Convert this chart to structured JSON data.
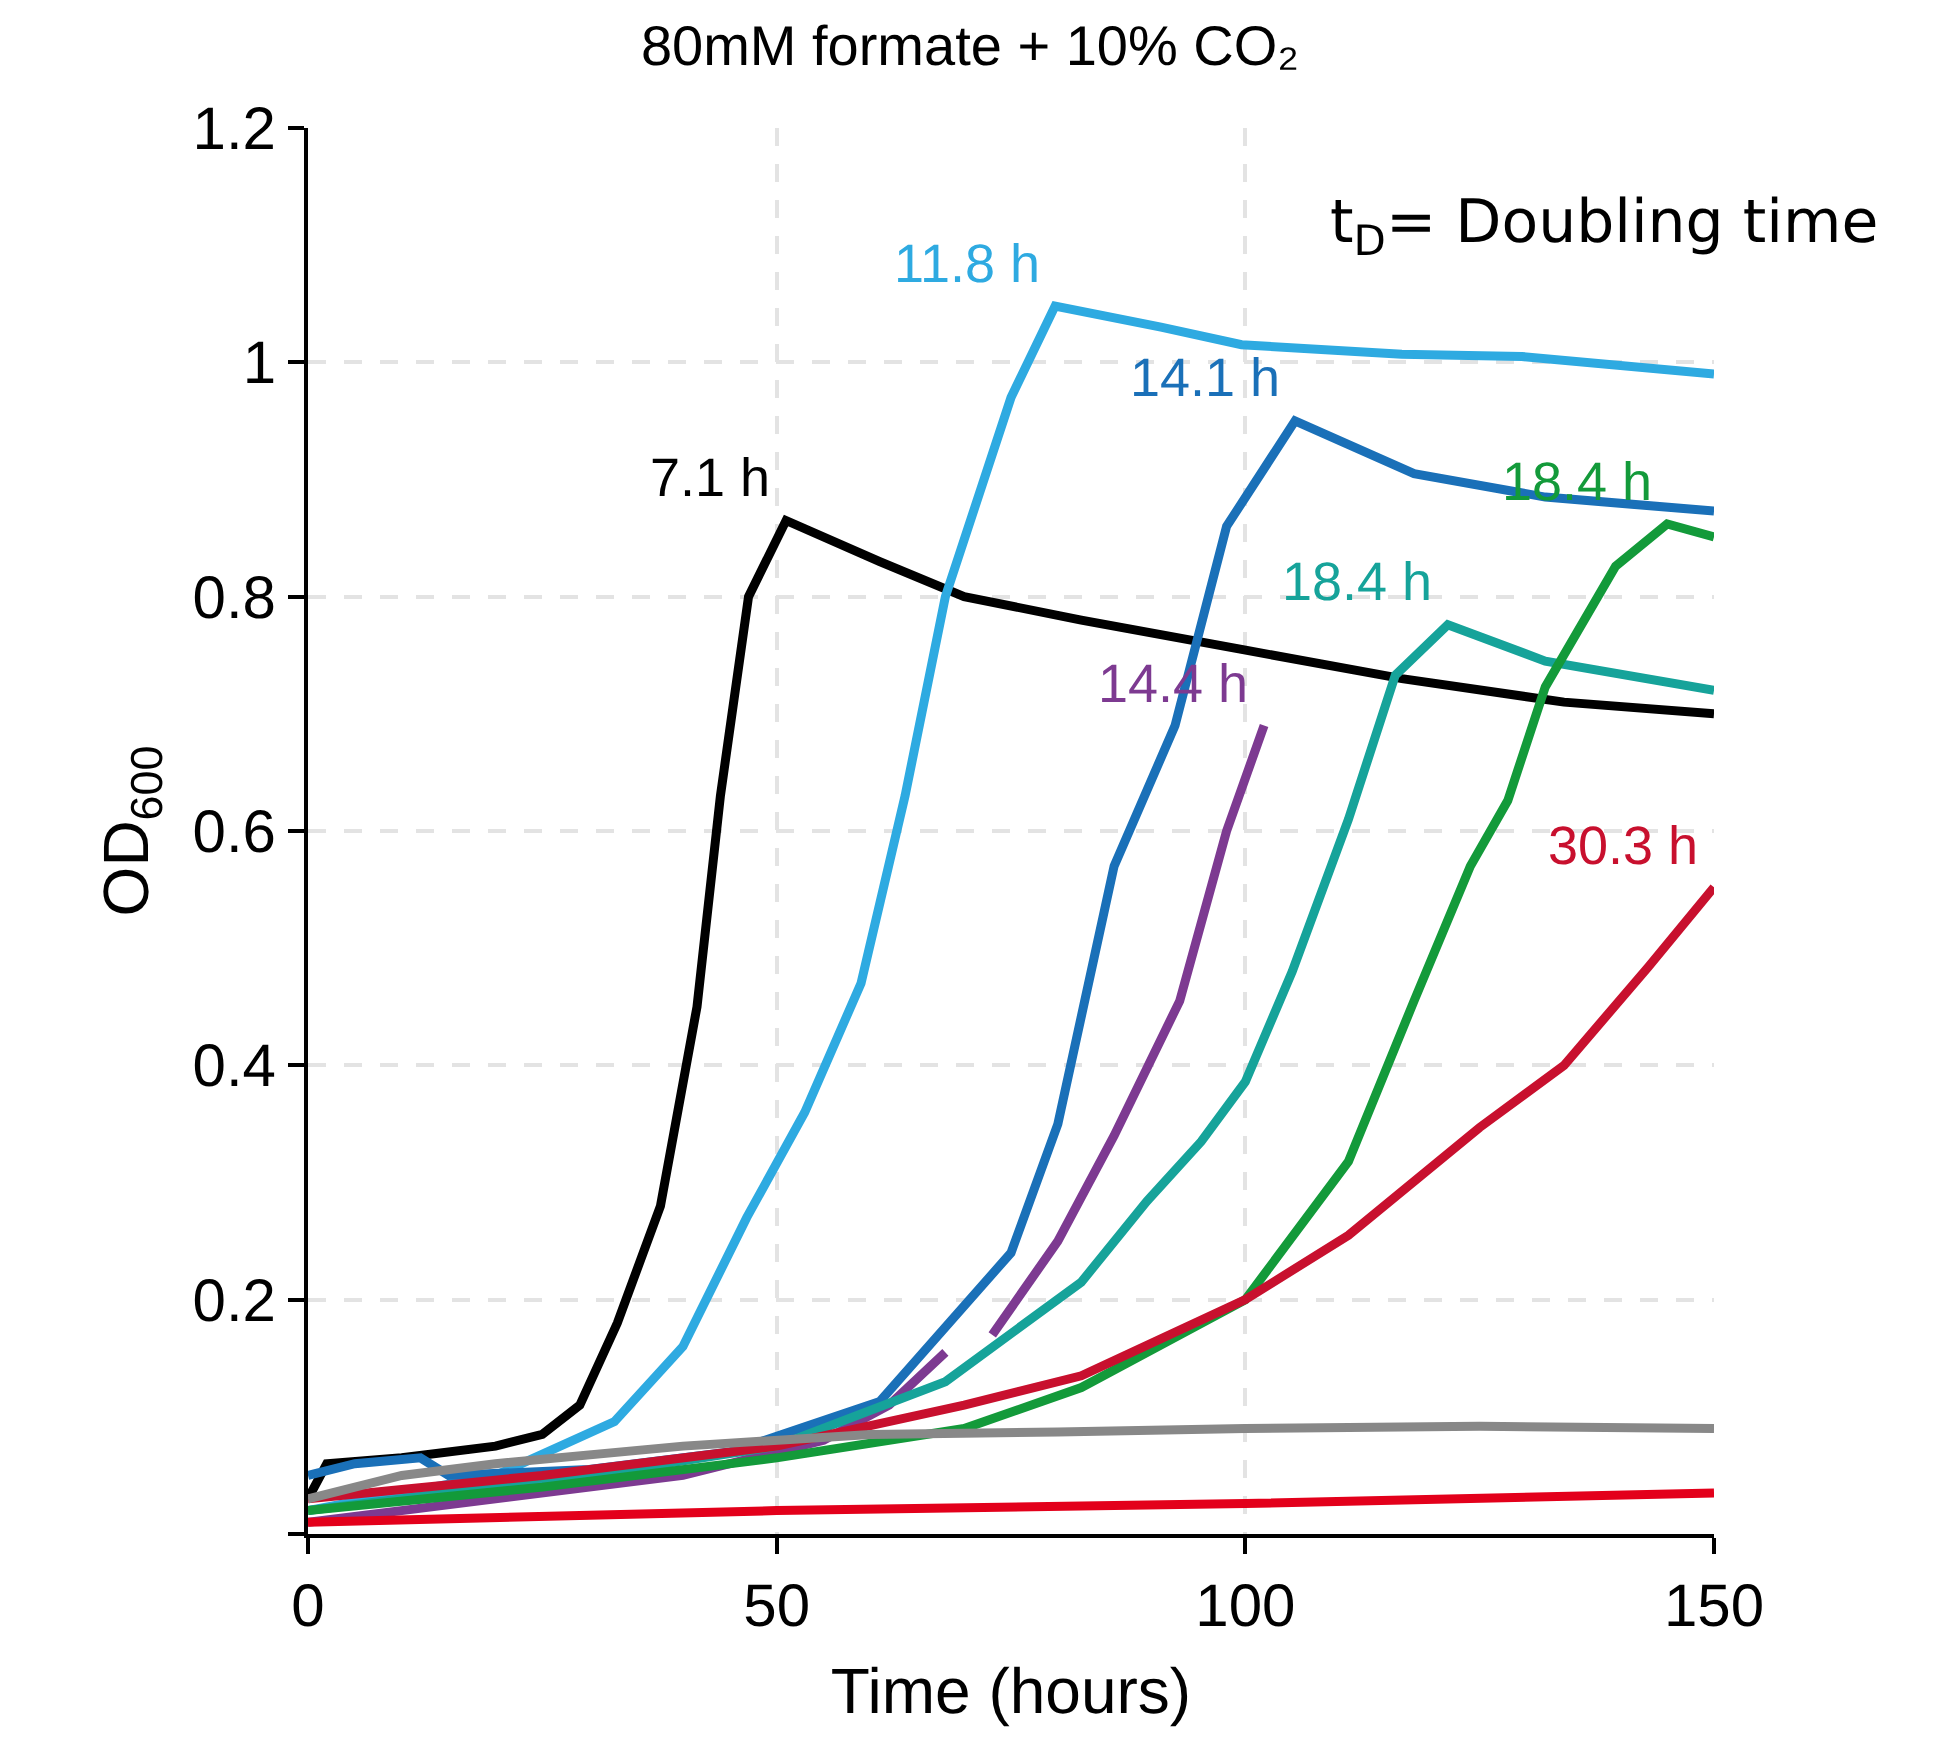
{
  "chart_data": {
    "type": "line",
    "title": "80mM formate + 10% CO₂",
    "xlabel": "Time (hours)",
    "ylabel": "OD$_{600}$",
    "annotations": [
      "t$_{D}$= Doubling time"
    ],
    "xlim": [
      0,
      150
    ],
    "xticks": [
      0,
      50,
      100,
      150
    ],
    "ylim": [
      0,
      1.2
    ],
    "yticks": [
      {
        "value": 0,
        "label": null
      },
      0.2,
      0.4,
      0.6,
      0.8,
      1,
      1.2
    ],
    "grid": true,
    "legend": false,
    "marker": "none",
    "line_style": "solid",
    "series": [
      {
        "name": "7.1 h",
        "color": "#000000",
        "x": [
          0,
          2,
          10,
          20,
          25,
          29,
          33,
          37.6,
          41.5,
          44,
          47,
          51,
          61,
          70,
          82.5,
          99.6,
          116.7,
          134,
          150
        ],
        "values": [
          0.03,
          0.06,
          0.065,
          0.075,
          0.085,
          0.11,
          0.18,
          0.28,
          0.45,
          0.63,
          0.8,
          0.865,
          0.83,
          0.8,
          0.78,
          0.755,
          0.73,
          0.71,
          0.7
        ]
      },
      {
        "name": "11.8 h",
        "color": "#2eaae1",
        "x": [
          0,
          10,
          20,
          32.7,
          40,
          46.8,
          53,
          59,
          63.7,
          68,
          75,
          79.7,
          91,
          99.6,
          116.7,
          129.5,
          150
        ],
        "values": [
          0.02,
          0.035,
          0.05,
          0.096,
          0.16,
          0.27,
          0.36,
          0.47,
          0.63,
          0.8,
          0.97,
          1.048,
          1.03,
          1.015,
          1.007,
          1.005,
          0.99
        ]
      },
      {
        "name": "14.1 h",
        "color": "#1a70b8",
        "x": [
          0,
          5,
          12,
          15,
          30,
          45,
          61,
          75,
          80,
          86,
          92.5,
          98,
          105.3,
          118,
          132,
          150
        ],
        "values": [
          0.05,
          0.06,
          0.065,
          0.05,
          0.055,
          0.07,
          0.113,
          0.24,
          0.35,
          0.57,
          0.69,
          0.86,
          0.95,
          0.905,
          0.885,
          0.873
        ]
      },
      {
        "name": "14.4 h",
        "color": "#7d3a91",
        "x": [
          0,
          20,
          40,
          55,
          62,
          68,
          70,
          73,
          80,
          86,
          93,
          98,
          102
        ],
        "values": [
          0.01,
          0.03,
          0.05,
          0.08,
          0.11,
          0.155,
          null,
          0.17,
          0.25,
          0.34,
          0.455,
          0.6,
          0.69
        ]
      },
      {
        "name": "18.4 h",
        "color": "#16a39a",
        "x": [
          0,
          30,
          50,
          68,
          82.5,
          89.5,
          95.3,
          100,
          105,
          111,
          116,
          121.6,
          132,
          150
        ],
        "values": [
          0.02,
          0.05,
          0.075,
          0.13,
          0.215,
          0.284,
          0.335,
          0.386,
          0.48,
          0.61,
          0.733,
          0.776,
          0.745,
          0.72
        ]
      },
      {
        "name": "18.4 h",
        "color": "#139a3a",
        "x": [
          0,
          25,
          50,
          70,
          82.5,
          100,
          111,
          118,
          124,
          128,
          132,
          139.5,
          145,
          150
        ],
        "values": [
          0.02,
          0.04,
          0.065,
          0.09,
          0.125,
          0.2,
          0.318,
          0.455,
          0.57,
          0.626,
          0.723,
          0.826,
          0.862,
          0.851
        ]
      },
      {
        "name": "30.3 h",
        "color": "#c8102e",
        "x": [
          0,
          25,
          50,
          70,
          82.5,
          100,
          111,
          125,
          134,
          143,
          150
        ],
        "values": [
          0.03,
          0.05,
          0.075,
          0.11,
          0.135,
          0.2,
          0.255,
          0.347,
          0.4,
          0.484,
          0.552
        ]
      },
      {
        "color": "#888888",
        "x": [
          0,
          10,
          20,
          40,
          60,
          80,
          100,
          125,
          150
        ],
        "values": [
          0.03,
          0.05,
          0.06,
          0.075,
          0.085,
          0.087,
          0.09,
          0.092,
          0.09
        ]
      },
      {
        "color": "#e3001b",
        "x": [
          0,
          50,
          100,
          150
        ],
        "values": [
          0.01,
          0.02,
          0.026,
          0.035
        ]
      }
    ]
  }
}
